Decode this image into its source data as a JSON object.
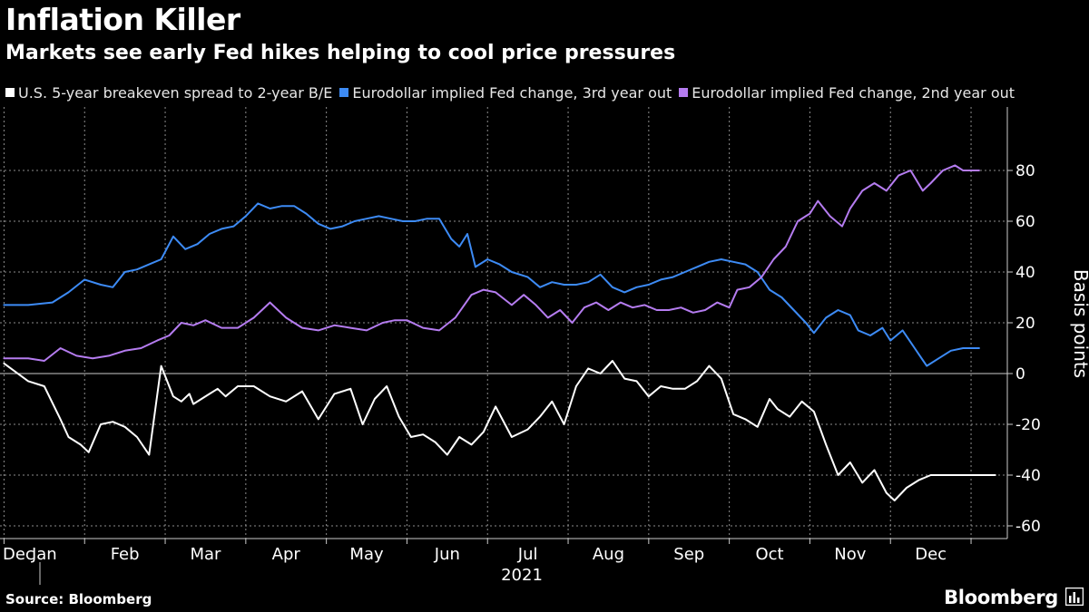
{
  "colors": {
    "background": "#000000",
    "grid": "#8c8c8c",
    "axis": "#cccccc",
    "text": "#ffffff"
  },
  "source": "Source: Bloomberg",
  "brand": "Bloomberg",
  "brand_icon": "bloomberg-terminal-icon",
  "chart_data": {
    "type": "line",
    "title": "Inflation Killer",
    "subtitle": "Markets see early Fed hikes helping to cool price pressures",
    "ylabel": "Basis points",
    "xlabel": "2021",
    "ylim": [
      -65,
      105
    ],
    "yticks": [
      -60,
      -40,
      -20,
      0,
      20,
      40,
      60,
      80
    ],
    "xticks": [
      "Dec",
      "Jan",
      "Feb",
      "Mar",
      "Apr",
      "May",
      "Jun",
      "Jul",
      "Aug",
      "Sep",
      "Oct",
      "Nov",
      "Dec"
    ],
    "x_unit": "months since Dec 1, 2020",
    "xlim": [
      -0.05,
      12.45
    ],
    "grid": true,
    "series": [
      {
        "name": "U.S. 5-year breakeven spread to 2-year B/E",
        "color": "#ffffff",
        "x": [
          0,
          0.3,
          0.5,
          0.7,
          0.8,
          0.95,
          1.05,
          1.2,
          1.35,
          1.5,
          1.65,
          1.8,
          1.95,
          2.1,
          2.2,
          2.3,
          2.35,
          2.45,
          2.55,
          2.65,
          2.75,
          2.9,
          3.1,
          3.3,
          3.5,
          3.7,
          3.9,
          4.1,
          4.3,
          4.45,
          4.6,
          4.75,
          4.9,
          5.05,
          5.2,
          5.35,
          5.5,
          5.65,
          5.8,
          5.95,
          6.1,
          6.3,
          6.5,
          6.65,
          6.8,
          6.95,
          7.1,
          7.25,
          7.4,
          7.55,
          7.7,
          7.85,
          8.0,
          8.15,
          8.3,
          8.45,
          8.6,
          8.75,
          8.9,
          9.05,
          9.2,
          9.35,
          9.5,
          9.6,
          9.75,
          9.9,
          10.05,
          10.2,
          10.35,
          10.5,
          10.65,
          10.8,
          10.95,
          11.05,
          11.2,
          11.35,
          11.5,
          11.6,
          11.75,
          11.85,
          12.0,
          12.1,
          12.2,
          12.3
        ],
        "y": [
          4,
          -3,
          -5,
          -18,
          -25,
          -28,
          -31,
          -20,
          -19,
          -21,
          -25,
          -32,
          3,
          -9,
          -11,
          -8,
          -12,
          -10,
          -8,
          -6,
          -9,
          -5,
          -5,
          -9,
          -11,
          -7,
          -18,
          -8,
          -6,
          -20,
          -10,
          -5,
          -17,
          -25,
          -24,
          -27,
          -32,
          -25,
          -28,
          -23,
          -13,
          -25,
          -22,
          -17,
          -11,
          -20,
          -5,
          2,
          0,
          5,
          -2,
          -3,
          -9,
          -5,
          -6,
          -6,
          -3,
          3,
          -2,
          -16,
          -18,
          -21,
          -10,
          -14,
          -17,
          -11,
          -15,
          -28,
          -40,
          -35,
          -43,
          -38,
          -47,
          -50,
          -45,
          -42,
          -40,
          -40,
          -40,
          -40,
          -40,
          -40,
          -40,
          -40
        ]
      },
      {
        "name": "Eurodollar implied Fed change, 3rd year out",
        "color": "#3d8bf5",
        "x": [
          0,
          0.3,
          0.6,
          0.8,
          1.0,
          1.2,
          1.35,
          1.5,
          1.65,
          1.8,
          1.95,
          2.1,
          2.25,
          2.4,
          2.55,
          2.7,
          2.85,
          3.0,
          3.15,
          3.3,
          3.45,
          3.6,
          3.75,
          3.9,
          4.05,
          4.2,
          4.35,
          4.5,
          4.65,
          4.8,
          4.95,
          5.1,
          5.25,
          5.4,
          5.55,
          5.65,
          5.75,
          5.85,
          6.0,
          6.15,
          6.3,
          6.5,
          6.65,
          6.8,
          6.95,
          7.1,
          7.25,
          7.4,
          7.55,
          7.7,
          7.85,
          8.0,
          8.15,
          8.3,
          8.45,
          8.6,
          8.75,
          8.9,
          9.05,
          9.2,
          9.35,
          9.5,
          9.65,
          9.8,
          9.95,
          10.05,
          10.2,
          10.35,
          10.5,
          10.6,
          10.75,
          10.9,
          11.0,
          11.15,
          11.3,
          11.45,
          11.6,
          11.75,
          11.9,
          12.0,
          12.1
        ],
        "y": [
          27,
          27,
          28,
          32,
          37,
          35,
          34,
          40,
          41,
          43,
          45,
          54,
          49,
          51,
          55,
          57,
          58,
          62,
          67,
          65,
          66,
          66,
          63,
          59,
          57,
          58,
          60,
          61,
          62,
          61,
          60,
          60,
          61,
          61,
          53,
          50,
          55,
          42,
          45,
          43,
          40,
          38,
          34,
          36,
          35,
          35,
          36,
          39,
          34,
          32,
          34,
          35,
          37,
          38,
          40,
          42,
          44,
          45,
          44,
          43,
          40,
          33,
          30,
          25,
          20,
          16,
          22,
          25,
          23,
          17,
          15,
          18,
          13,
          17,
          10,
          3,
          6,
          9,
          10,
          10,
          10
        ]
      },
      {
        "name": "Eurodollar implied Fed change, 2nd year out",
        "color": "#b57cf0",
        "x": [
          0,
          0.3,
          0.5,
          0.7,
          0.9,
          1.1,
          1.3,
          1.5,
          1.7,
          1.9,
          2.05,
          2.2,
          2.35,
          2.5,
          2.7,
          2.9,
          3.1,
          3.3,
          3.5,
          3.7,
          3.9,
          4.1,
          4.3,
          4.5,
          4.7,
          4.85,
          5.0,
          5.2,
          5.4,
          5.6,
          5.8,
          5.95,
          6.1,
          6.3,
          6.45,
          6.6,
          6.75,
          6.9,
          7.05,
          7.2,
          7.35,
          7.5,
          7.65,
          7.8,
          7.95,
          8.1,
          8.25,
          8.4,
          8.55,
          8.7,
          8.85,
          9.0,
          9.1,
          9.25,
          9.4,
          9.55,
          9.7,
          9.85,
          10.0,
          10.1,
          10.25,
          10.4,
          10.5,
          10.65,
          10.8,
          10.95,
          11.1,
          11.25,
          11.4,
          11.5,
          11.65,
          11.8,
          11.9,
          12.0,
          12.1
        ],
        "y": [
          6,
          6,
          5,
          10,
          7,
          6,
          7,
          9,
          10,
          13,
          15,
          20,
          19,
          21,
          18,
          18,
          22,
          28,
          22,
          18,
          17,
          19,
          18,
          17,
          20,
          21,
          21,
          18,
          17,
          22,
          31,
          33,
          32,
          27,
          31,
          27,
          22,
          25,
          20,
          26,
          28,
          25,
          28,
          26,
          27,
          25,
          25,
          26,
          24,
          25,
          28,
          26,
          33,
          34,
          38,
          45,
          50,
          60,
          63,
          68,
          62,
          58,
          65,
          72,
          75,
          72,
          78,
          80,
          72,
          75,
          80,
          82,
          80,
          80,
          80
        ]
      }
    ]
  }
}
